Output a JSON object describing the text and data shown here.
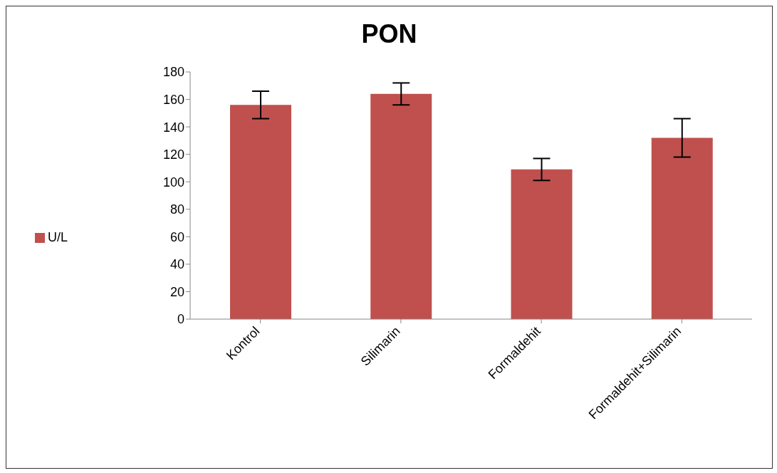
{
  "chart_data": {
    "type": "bar",
    "title": "PON",
    "categories": [
      "Kontrol",
      "Silimarin",
      "Formaldehit",
      "Formaldehit+Silimarin"
    ],
    "series": [
      {
        "name": "U/L",
        "color": "#c0504d",
        "values": [
          156,
          164,
          109,
          132
        ],
        "errors": [
          10,
          8,
          8,
          14
        ]
      }
    ],
    "ylim": [
      0,
      180
    ],
    "yticks": [
      0,
      20,
      40,
      60,
      80,
      100,
      120,
      140,
      160,
      180
    ],
    "grid": false,
    "legend": "left"
  }
}
